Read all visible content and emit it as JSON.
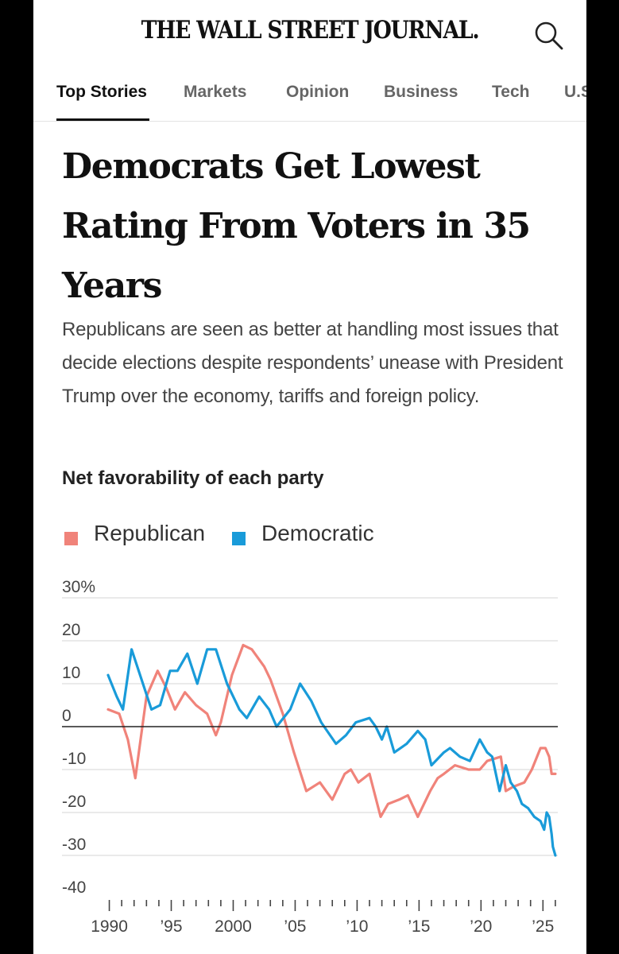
{
  "header": {
    "logo": "THE WALL STREET JOURNAL."
  },
  "nav": {
    "tabs": [
      {
        "label": "Top Stories",
        "active": true
      },
      {
        "label": "Markets",
        "active": false
      },
      {
        "label": "Opinion",
        "active": false
      },
      {
        "label": "Business",
        "active": false
      },
      {
        "label": "Tech",
        "active": false
      },
      {
        "label": "U.S.",
        "active": false
      }
    ]
  },
  "article": {
    "headline": "Democrats Get Lowest Rating From Voters in 35 Years",
    "dek": "Republicans are seen as better at handling most issues that decide elections despite respondents’ unease with President Trump over the economy, tariffs and foreign policy."
  },
  "colors": {
    "republican": "#f0837a",
    "democratic": "#199bd9",
    "grid": "#d6d6d6",
    "zero": "#222222"
  },
  "chart_data": {
    "type": "line",
    "title": "Net favorability of each party",
    "xlabel": "",
    "ylabel": "",
    "ylim": [
      -40,
      30
    ],
    "xlim": [
      1989.9,
      2026.2
    ],
    "y_ticks": [
      30,
      20,
      10,
      0,
      -10,
      -20,
      -30,
      -40
    ],
    "y_tick_labels": [
      "30%",
      "20",
      "10",
      "0",
      "-10",
      "-20",
      "-30",
      "-40"
    ],
    "x_ticks": [
      1990,
      1995,
      2000,
      2005,
      2010,
      2015,
      2020,
      2025
    ],
    "x_tick_labels": [
      "1990",
      "’95",
      "2000",
      "’05",
      "’10",
      "’15",
      "’20",
      "’25"
    ],
    "legend": [
      "Republican",
      "Democratic"
    ],
    "series": [
      {
        "name": "Republican",
        "color": "#f0837a",
        "x": [
          1989.9,
          1990.8,
          1991.5,
          1992.1,
          1993.0,
          1993.9,
          1994.6,
          1995.3,
          1996.1,
          1997.0,
          1997.9,
          1998.6,
          1999.0,
          1999.9,
          2000.8,
          2001.5,
          2002.5,
          2003.0,
          2004.0,
          2004.9,
          2005.9,
          2007.0,
          2008.0,
          2009.0,
          2009.5,
          2010.1,
          2011.0,
          2011.9,
          2012.5,
          2013.4,
          2014.1,
          2014.9,
          2015.9,
          2016.5,
          2017.0,
          2017.9,
          2019.0,
          2019.9,
          2020.5,
          2021.6,
          2022.0,
          2022.6,
          2023.5,
          2024.1,
          2024.8,
          2025.2,
          2025.5,
          2025.7,
          2025.8,
          2026.0
        ],
        "y": [
          4,
          3,
          -3,
          -12,
          7,
          13,
          9,
          4,
          8,
          5,
          3,
          -2,
          1,
          12,
          19,
          18,
          14,
          11,
          3,
          -6,
          -15,
          -13,
          -17,
          -11,
          -10,
          -13,
          -11,
          -21,
          -18,
          -17,
          -16,
          -21,
          -15,
          -12,
          -11,
          -9,
          -10,
          -10,
          -8,
          -7,
          -15,
          -14,
          -13,
          -10,
          -5,
          -5,
          -7,
          -11,
          -11,
          -11
        ]
      },
      {
        "name": "Democratic",
        "color": "#199bd9",
        "x": [
          1989.9,
          1990.6,
          1991.1,
          1991.8,
          1992.6,
          1993.4,
          1994.1,
          1994.9,
          1995.5,
          1996.3,
          1997.1,
          1997.9,
          1998.6,
          1999.5,
          2000.5,
          2001.1,
          2002.1,
          2002.9,
          2003.5,
          2004.6,
          2005.4,
          2006.3,
          2007.1,
          2008.3,
          2009.1,
          2009.9,
          2011.0,
          2011.5,
          2012.0,
          2012.4,
          2013.0,
          2014.0,
          2014.9,
          2015.5,
          2016.0,
          2017.0,
          2017.5,
          2018.3,
          2019.1,
          2019.9,
          2020.5,
          2020.9,
          2021.5,
          2022.0,
          2022.4,
          2022.9,
          2023.3,
          2023.8,
          2024.3,
          2024.8,
          2025.1,
          2025.3,
          2025.5,
          2025.7,
          2025.8,
          2026.0
        ],
        "y": [
          12,
          7,
          4,
          18,
          11,
          4,
          5,
          13,
          13,
          17,
          10,
          18,
          18,
          10,
          4,
          2,
          7,
          4,
          0,
          4,
          10,
          6,
          1,
          -4,
          -2,
          1,
          2,
          0,
          -3,
          0,
          -6,
          -4,
          -1,
          -3,
          -9,
          -6,
          -5,
          -7,
          -8,
          -3,
          -6,
          -7,
          -15,
          -9,
          -13,
          -15,
          -18,
          -19,
          -21,
          -22,
          -24,
          -20,
          -21,
          -25,
          -28,
          -30
        ]
      }
    ]
  }
}
